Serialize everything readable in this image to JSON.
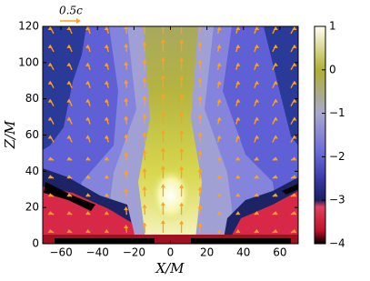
{
  "chart_data": {
    "type": "heatmap",
    "xlabel": "X/M",
    "ylabel": "Z/M",
    "xlim": [
      -70,
      70
    ],
    "ylim": [
      0,
      120
    ],
    "xticks": [
      {
        "value": -60,
        "label": "−60"
      },
      {
        "value": -40,
        "label": "−40"
      },
      {
        "value": -20,
        "label": "−20"
      },
      0,
      20,
      40,
      60
    ],
    "yticks": [
      0,
      20,
      40,
      60,
      80,
      100,
      120
    ],
    "colorbar": {
      "clim": [
        -4,
        1
      ],
      "ticks": [
        {
          "value": -4,
          "label": "−4"
        },
        {
          "value": -3,
          "label": "−3"
        },
        {
          "value": -2,
          "label": "−2"
        },
        {
          "value": -1,
          "label": "−1"
        },
        0,
        1
      ]
    },
    "vector_scale_label": "0.5c",
    "arrow_color": "#ffa020"
  }
}
